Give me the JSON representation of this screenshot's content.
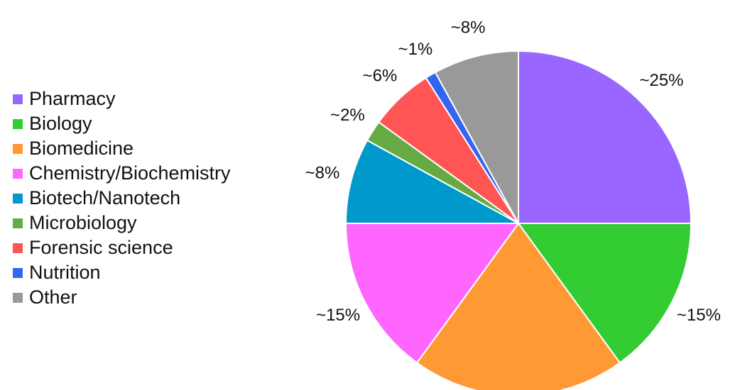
{
  "chart_data": {
    "type": "pie",
    "categories": [
      "Pharmacy",
      "Biology",
      "Biomedicine",
      "Chemistry/Biochemistry",
      "Biotech/Nanotech",
      "Microbiology",
      "Forensic science",
      "Nutrition",
      "Other"
    ],
    "values": [
      25,
      15,
      20,
      15,
      8,
      2,
      6,
      1,
      8
    ],
    "labels": [
      "~25%",
      "~15%",
      "",
      "~15%",
      "~8%",
      "~2%",
      "~6%",
      "~1%",
      "~8%"
    ],
    "colors": [
      "#9966ff",
      "#33cc33",
      "#ff9933",
      "#ff66ff",
      "#0099cc",
      "#66aa44",
      "#ff5555",
      "#3366ee",
      "#999999"
    ],
    "legend_position": "left",
    "start_angle": "top, clockwise"
  }
}
